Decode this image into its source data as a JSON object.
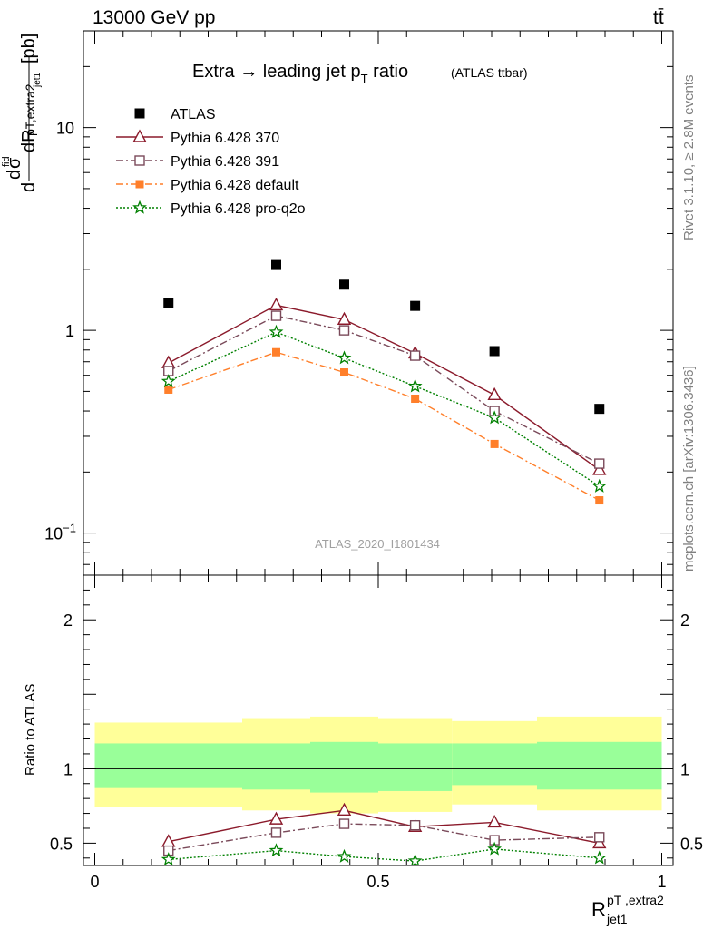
{
  "header": {
    "energy": "13000 GeV pp",
    "process": "tt̄"
  },
  "side_labels": {
    "rivet": "Rivet 3.1.10, ≥ 2.8M events",
    "source": "mcplots.cern.ch [arXiv:1306.3436]"
  },
  "watermark": "ATLAS_2020_I1801434",
  "chart_data": [
    {
      "type": "scatter",
      "panel": "main",
      "title": "Extra → leading jet p_T ratio",
      "subtitle": "(ATLAS ttbar)",
      "ylabel": "dσ^fid / dR^{pT,extra2}_{jet1} [pb]",
      "yscale": "log",
      "ylim": [
        0.062,
        30
      ],
      "xlim": [
        -0.02,
        1.02
      ],
      "y_ticklabels": [
        "10^-1",
        "1",
        "10"
      ],
      "x": [
        0.13,
        0.32,
        0.44,
        0.565,
        0.705,
        0.89
      ],
      "series": [
        {
          "name": "ATLAS",
          "marker": "square-filled",
          "color": "#000000",
          "values": [
            1.37,
            2.1,
            1.68,
            1.32,
            0.79,
            0.41
          ]
        },
        {
          "name": "Pythia 6.428 370",
          "marker": "triangle-open",
          "color": "#8b1a2b",
          "values": [
            0.69,
            1.33,
            1.13,
            0.77,
            0.48,
            0.205
          ]
        },
        {
          "name": "Pythia 6.428 391",
          "marker": "square-open",
          "color": "#7a4a5a",
          "values": [
            0.63,
            1.18,
            1.0,
            0.75,
            0.4,
            0.22
          ]
        },
        {
          "name": "Pythia 6.428 default",
          "marker": "square-filled-small",
          "color": "#ff7f2a",
          "values": [
            0.51,
            0.78,
            0.62,
            0.46,
            0.275,
            0.145
          ]
        },
        {
          "name": "Pythia 6.428 pro-q2o",
          "marker": "star",
          "color": "#008000",
          "values": [
            0.56,
            0.98,
            0.73,
            0.53,
            0.37,
            0.17
          ]
        }
      ]
    },
    {
      "type": "line",
      "panel": "ratio",
      "ylabel": "Ratio to ATLAS",
      "xlabel": "R^{pT,extra2}_{jet1}",
      "ylim": [
        0.35,
        2.3
      ],
      "xlim": [
        -0.02,
        1.02
      ],
      "y_ticklabels": [
        "0.5",
        "1",
        "2"
      ],
      "x_ticklabels": [
        "0",
        "0.5",
        "1"
      ],
      "bands": {
        "bin_edges": [
          0.0,
          0.26,
          0.38,
          0.5,
          0.63,
          0.78,
          1.0
        ],
        "yellow": [
          [
            0.74,
            1.31
          ],
          [
            0.72,
            1.34
          ],
          [
            0.7,
            1.35
          ],
          [
            0.71,
            1.34
          ],
          [
            0.76,
            1.32
          ],
          [
            0.72,
            1.35
          ]
        ],
        "green": [
          [
            0.87,
            1.17
          ],
          [
            0.86,
            1.17
          ],
          [
            0.84,
            1.18
          ],
          [
            0.85,
            1.17
          ],
          [
            0.89,
            1.17
          ],
          [
            0.86,
            1.18
          ]
        ]
      },
      "x": [
        0.13,
        0.32,
        0.44,
        0.565,
        0.705,
        0.89
      ],
      "series": [
        {
          "name": "Pythia 6.428 370",
          "color": "#8b1a2b",
          "values": [
            0.51,
            0.66,
            0.72,
            0.61,
            0.64,
            0.5
          ]
        },
        {
          "name": "Pythia 6.428 391",
          "color": "#7a4a5a",
          "values": [
            0.45,
            0.57,
            0.63,
            0.62,
            0.52,
            0.54
          ]
        },
        {
          "name": "Pythia 6.428 pro-q2o",
          "color": "#008000",
          "values": [
            0.39,
            0.45,
            0.41,
            0.38,
            0.46,
            0.4
          ]
        }
      ]
    }
  ]
}
